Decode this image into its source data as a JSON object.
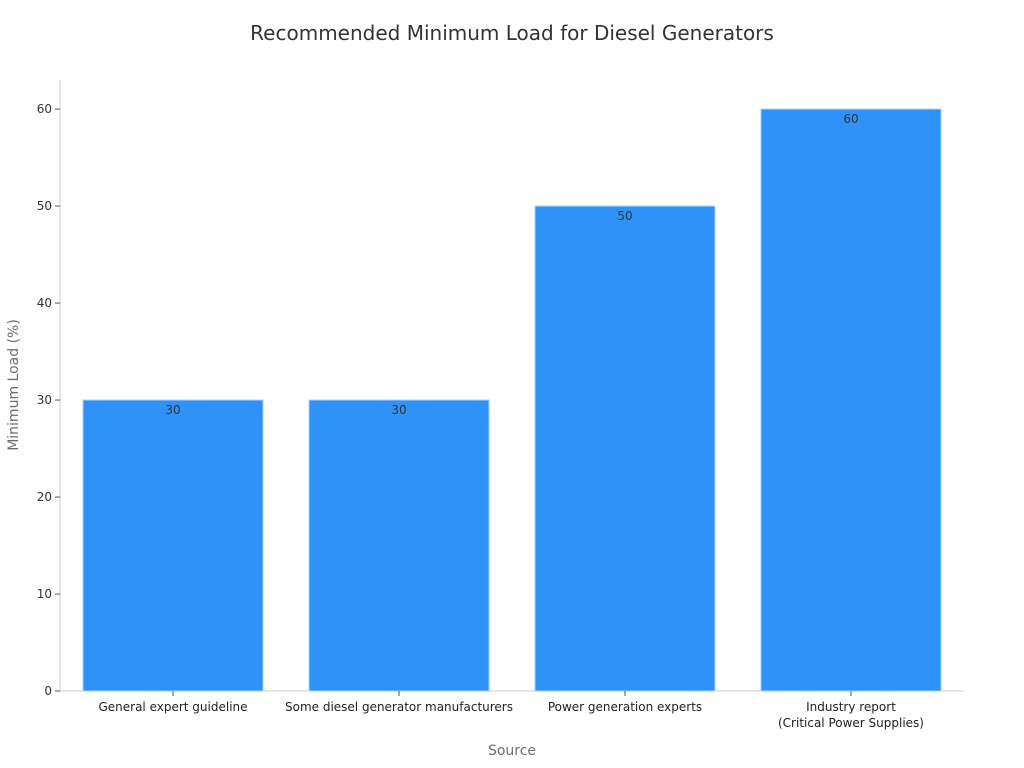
{
  "chart_data": {
    "type": "bar",
    "title": "Recommended Minimum Load for Diesel Generators",
    "xlabel": "Source",
    "ylabel": "Minimum Load (%)",
    "categories": [
      [
        "General expert guideline"
      ],
      [
        "Some diesel generator manufacturers"
      ],
      [
        "Power generation experts"
      ],
      [
        "Industry report",
        "(Critical Power Supplies)"
      ]
    ],
    "values": [
      30,
      30,
      50,
      60
    ],
    "ylim": [
      0,
      63
    ],
    "yticks": [
      0,
      10,
      20,
      30,
      40,
      50,
      60
    ],
    "bar_color": "#2f92f8",
    "grid": false,
    "legend": "none"
  }
}
